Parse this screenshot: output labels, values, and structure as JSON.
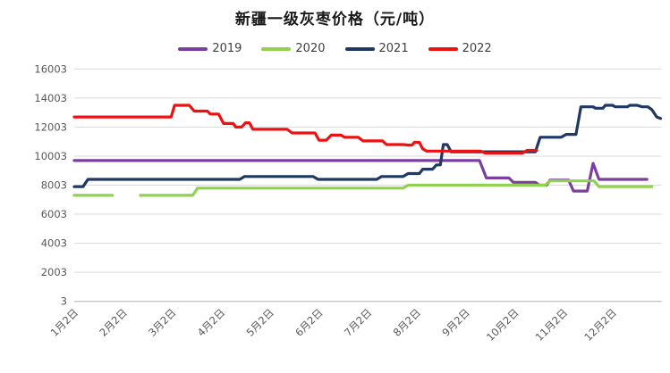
{
  "title": "新疆一级灰枣价格（元/吨）",
  "colors": {
    "grid": "#d9d9d9",
    "axis": "#bfbfbf",
    "tick_text": "#595959",
    "title_text": "#1a1a1a",
    "background": "#ffffff"
  },
  "chart_data": {
    "type": "line",
    "title": "新疆一级灰枣价格（元/吨）",
    "legend_position": "top",
    "grid": "horizontal",
    "xlabel": "",
    "ylabel": "",
    "x_axis": {
      "labels": [
        "1月2日",
        "2月2日",
        "3月2日",
        "4月2日",
        "5月2日",
        "6月2日",
        "7月2日",
        "8月2日",
        "9月2日",
        "10月2日",
        "11月2日",
        "12月2日"
      ],
      "note": "x positions below are month units: 1 = 1月2日 … 12 = 12月2日, 13 = year end"
    },
    "y_axis": {
      "ticks": [
        3,
        2003,
        4003,
        6003,
        8003,
        10003,
        12003,
        14003,
        16003
      ],
      "range": [
        3,
        16003
      ]
    },
    "series": [
      {
        "name": "2019",
        "color": "#7b3f9e",
        "segments": [
          [
            [
              1.0,
              9700
            ],
            [
              9.28,
              9700
            ],
            [
              9.42,
              8500
            ],
            [
              9.88,
              8500
            ],
            [
              9.97,
              8200
            ],
            [
              10.42,
              8200
            ],
            [
              10.5,
              8000
            ],
            [
              10.65,
              8000
            ],
            [
              10.72,
              8350
            ],
            [
              11.1,
              8350
            ],
            [
              11.2,
              7600
            ],
            [
              11.48,
              7600
            ],
            [
              11.6,
              9500
            ],
            [
              11.72,
              8400
            ],
            [
              12.7,
              8400
            ]
          ]
        ]
      },
      {
        "name": "2020",
        "color": "#92d050",
        "segments": [
          [
            [
              1.0,
              7300
            ],
            [
              1.78,
              7300
            ]
          ],
          [
            [
              2.35,
              7300
            ],
            [
              3.42,
              7300
            ],
            [
              3.52,
              7800
            ],
            [
              7.72,
              7800
            ],
            [
              7.82,
              8000
            ],
            [
              10.62,
              8000
            ],
            [
              10.72,
              8300
            ],
            [
              11.62,
              8300
            ],
            [
              11.72,
              7900
            ],
            [
              12.8,
              7900
            ]
          ]
        ]
      },
      {
        "name": "2021",
        "color": "#1f3864",
        "segments": [
          [
            [
              1.0,
              7900
            ],
            [
              1.18,
              7900
            ],
            [
              1.28,
              8400
            ],
            [
              4.38,
              8400
            ],
            [
              4.48,
              8600
            ],
            [
              5.88,
              8600
            ],
            [
              5.98,
              8400
            ],
            [
              7.18,
              8400
            ],
            [
              7.28,
              8600
            ],
            [
              7.72,
              8600
            ],
            [
              7.82,
              8800
            ],
            [
              8.05,
              8800
            ],
            [
              8.12,
              9100
            ],
            [
              8.32,
              9100
            ],
            [
              8.4,
              9400
            ],
            [
              8.48,
              9400
            ],
            [
              8.54,
              10800
            ],
            [
              8.62,
              10800
            ],
            [
              8.7,
              10300
            ],
            [
              10.42,
              10300
            ],
            [
              10.52,
              11300
            ],
            [
              10.95,
              11300
            ],
            [
              11.05,
              11500
            ],
            [
              11.25,
              11500
            ],
            [
              11.35,
              13400
            ],
            [
              11.6,
              13400
            ],
            [
              11.65,
              13300
            ],
            [
              11.8,
              13300
            ],
            [
              11.85,
              13500
            ],
            [
              12.0,
              13500
            ],
            [
              12.05,
              13400
            ],
            [
              12.3,
              13400
            ],
            [
              12.35,
              13500
            ],
            [
              12.5,
              13500
            ],
            [
              12.6,
              13400
            ],
            [
              12.72,
              13400
            ],
            [
              12.8,
              13200
            ],
            [
              12.9,
              12700
            ],
            [
              12.98,
              12600
            ]
          ]
        ]
      },
      {
        "name": "2022",
        "color": "#ee1111",
        "segments": [
          [
            [
              1.0,
              12700
            ],
            [
              2.98,
              12700
            ],
            [
              3.05,
              13500
            ],
            [
              3.35,
              13500
            ],
            [
              3.45,
              13100
            ],
            [
              3.72,
              13100
            ],
            [
              3.78,
              12900
            ],
            [
              3.95,
              12900
            ],
            [
              4.05,
              12250
            ],
            [
              4.25,
              12250
            ],
            [
              4.3,
              12000
            ],
            [
              4.42,
              12000
            ],
            [
              4.5,
              12300
            ],
            [
              4.58,
              12300
            ],
            [
              4.65,
              11850
            ],
            [
              5.35,
              11850
            ],
            [
              5.45,
              11600
            ],
            [
              5.92,
              11600
            ],
            [
              6.0,
              11100
            ],
            [
              6.15,
              11100
            ],
            [
              6.25,
              11450
            ],
            [
              6.45,
              11450
            ],
            [
              6.52,
              11300
            ],
            [
              6.8,
              11300
            ],
            [
              6.9,
              11050
            ],
            [
              7.3,
              11050
            ],
            [
              7.38,
              10800
            ],
            [
              7.72,
              10800
            ],
            [
              7.82,
              10760
            ],
            [
              7.9,
              10760
            ],
            [
              7.95,
              10950
            ],
            [
              8.05,
              10950
            ],
            [
              8.12,
              10500
            ],
            [
              8.2,
              10350
            ],
            [
              9.3,
              10350
            ],
            [
              9.4,
              10200
            ],
            [
              10.15,
              10200
            ],
            [
              10.25,
              10400
            ],
            [
              10.45,
              10400
            ]
          ]
        ]
      }
    ]
  }
}
